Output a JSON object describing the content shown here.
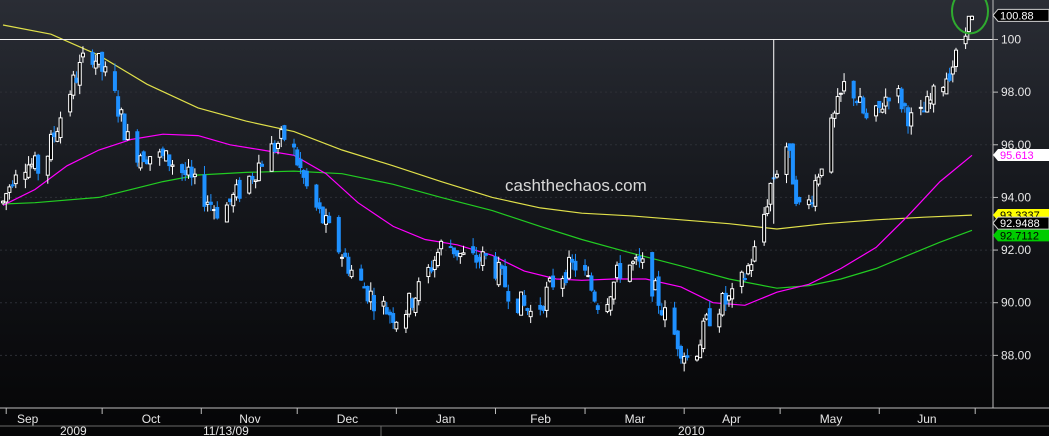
{
  "chart_data": {
    "type": "candlestick",
    "watermark": "cashthechaos.com",
    "ylim": [
      86.0,
      101.5
    ],
    "y_ticks": [
      {
        "value": 88.0,
        "label": "88.00"
      },
      {
        "value": 90.0,
        "label": "90.00"
      },
      {
        "value": 92.0,
        "label": "92.00"
      },
      {
        "value": 94.0,
        "label": "94.00"
      },
      {
        "value": 96.0,
        "label": "96.00"
      },
      {
        "value": 98.0,
        "label": "98.00"
      },
      {
        "value": 100.0,
        "label": "100"
      }
    ],
    "months": [
      "Sep",
      "Oct",
      "Nov",
      "Dec",
      "Jan",
      "Feb",
      "Mar",
      "Apr",
      "May",
      "Jun"
    ],
    "date_labels": [
      "2009",
      "11/13/09",
      "2010"
    ],
    "resistance_level": 100.0,
    "last_price": {
      "value": 100.88,
      "label": "100.88",
      "color": "#ffffff"
    },
    "ma_tags": [
      {
        "value": 95.613,
        "label": "95.613",
        "color": "#ff00ff"
      },
      {
        "value": 93.3337,
        "label": "93.3337",
        "color": "#ffff00"
      },
      {
        "value": 92.9488,
        "label": "92.9488",
        "color": "#ffffff"
      },
      {
        "value": 92.7112,
        "label": "92.7112",
        "color": "#00cc00"
      }
    ],
    "colors": {
      "up": "#ffffff",
      "down": "#1e90ff",
      "ma_short": "#ff00ff",
      "ma_mid": "#22cc22",
      "ma_long": "#e0e04a",
      "highlight": "#2faa2f"
    },
    "ma_short": [
      [
        "2009-08-31",
        93.7
      ],
      [
        "2009-09-10",
        94.3
      ],
      [
        "2009-09-20",
        95.2
      ],
      [
        "2009-09-30",
        95.8
      ],
      [
        "2009-10-10",
        96.2
      ],
      [
        "2009-10-20",
        96.4
      ],
      [
        "2009-10-31",
        96.35
      ],
      [
        "2009-11-10",
        96.0
      ],
      [
        "2009-11-20",
        95.8
      ],
      [
        "2009-11-30",
        95.6
      ],
      [
        "2009-12-10",
        94.9
      ],
      [
        "2009-12-20",
        93.8
      ],
      [
        "2009-12-31",
        92.9
      ],
      [
        "2010-01-10",
        92.4
      ],
      [
        "2010-01-20",
        92.2
      ],
      [
        "2010-01-31",
        91.8
      ],
      [
        "2010-02-10",
        91.2
      ],
      [
        "2010-02-20",
        90.9
      ],
      [
        "2010-02-28",
        90.85
      ],
      [
        "2010-03-10",
        90.9
      ],
      [
        "2010-03-20",
        90.9
      ],
      [
        "2010-03-31",
        90.6
      ],
      [
        "2010-04-10",
        90.0
      ],
      [
        "2010-04-20",
        89.9
      ],
      [
        "2010-04-30",
        90.4
      ],
      [
        "2010-05-10",
        90.7
      ],
      [
        "2010-05-20",
        91.3
      ],
      [
        "2010-05-31",
        92.1
      ],
      [
        "2010-06-10",
        93.3
      ],
      [
        "2010-06-20",
        94.6
      ],
      [
        "2010-06-30",
        95.6
      ]
    ],
    "ma_mid": [
      [
        "2009-08-31",
        93.75
      ],
      [
        "2009-09-10",
        93.8
      ],
      [
        "2009-09-30",
        94.0
      ],
      [
        "2009-10-20",
        94.6
      ],
      [
        "2009-10-31",
        94.85
      ],
      [
        "2009-11-15",
        94.95
      ],
      [
        "2009-11-30",
        95.0
      ],
      [
        "2009-12-15",
        94.9
      ],
      [
        "2009-12-31",
        94.5
      ],
      [
        "2010-01-15",
        94.0
      ],
      [
        "2010-01-31",
        93.5
      ],
      [
        "2010-02-15",
        92.9
      ],
      [
        "2010-02-28",
        92.4
      ],
      [
        "2010-03-15",
        91.9
      ],
      [
        "2010-03-31",
        91.4
      ],
      [
        "2010-04-15",
        90.9
      ],
      [
        "2010-04-30",
        90.55
      ],
      [
        "2010-05-10",
        90.65
      ],
      [
        "2010-05-20",
        90.9
      ],
      [
        "2010-05-31",
        91.3
      ],
      [
        "2010-06-10",
        91.8
      ],
      [
        "2010-06-20",
        92.3
      ],
      [
        "2010-06-30",
        92.75
      ]
    ],
    "ma_long": [
      [
        "2009-08-31",
        100.55
      ],
      [
        "2009-09-15",
        100.2
      ],
      [
        "2009-09-30",
        99.4
      ],
      [
        "2009-10-15",
        98.3
      ],
      [
        "2009-10-31",
        97.4
      ],
      [
        "2009-11-15",
        96.9
      ],
      [
        "2009-11-30",
        96.5
      ],
      [
        "2009-12-15",
        95.8
      ],
      [
        "2009-12-31",
        95.2
      ],
      [
        "2010-01-15",
        94.6
      ],
      [
        "2010-01-31",
        94.0
      ],
      [
        "2010-02-15",
        93.6
      ],
      [
        "2010-02-28",
        93.4
      ],
      [
        "2010-03-15",
        93.3
      ],
      [
        "2010-03-31",
        93.15
      ],
      [
        "2010-04-15",
        93.0
      ],
      [
        "2010-04-30",
        92.8
      ],
      [
        "2010-05-15",
        93.0
      ],
      [
        "2010-05-31",
        93.15
      ],
      [
        "2010-06-15",
        93.25
      ],
      [
        "2010-06-30",
        93.33
      ]
    ],
    "price_path": [
      [
        "2009-08-31",
        93.8
      ],
      [
        "2009-09-05",
        95.5
      ],
      [
        "2009-09-12",
        95.0
      ],
      [
        "2009-09-20",
        97.8
      ],
      [
        "2009-09-27",
        99.7
      ],
      [
        "2009-10-04",
        98.2
      ],
      [
        "2009-10-10",
        95.8
      ],
      [
        "2009-10-17",
        95.6
      ],
      [
        "2009-10-24",
        95.3
      ],
      [
        "2009-10-31",
        94.3
      ],
      [
        "2009-11-07",
        93.4
      ],
      [
        "2009-11-14",
        94.4
      ],
      [
        "2009-11-21",
        95.6
      ],
      [
        "2009-11-28",
        96.4
      ],
      [
        "2009-12-05",
        94.0
      ],
      [
        "2009-12-12",
        92.5
      ],
      [
        "2009-12-19",
        91.0
      ],
      [
        "2009-12-26",
        90.0
      ],
      [
        "2010-01-02",
        89.4
      ],
      [
        "2010-01-09",
        90.7
      ],
      [
        "2010-01-16",
        92.4
      ],
      [
        "2010-01-23",
        91.6
      ],
      [
        "2010-01-30",
        91.7
      ],
      [
        "2010-02-06",
        90.3
      ],
      [
        "2010-02-13",
        89.5
      ],
      [
        "2010-02-20",
        91.0
      ],
      [
        "2010-02-27",
        91.5
      ],
      [
        "2010-03-06",
        89.8
      ],
      [
        "2010-03-13",
        91.5
      ],
      [
        "2010-03-20",
        91.3
      ],
      [
        "2010-03-27",
        89.2
      ],
      [
        "2010-04-03",
        87.7
      ],
      [
        "2010-04-10",
        89.8
      ],
      [
        "2010-04-17",
        90.2
      ],
      [
        "2010-04-24",
        92.2
      ],
      [
        "2010-04-28",
        94.5
      ],
      [
        "2010-05-03",
        96.0
      ],
      [
        "2010-05-08",
        93.0
      ],
      [
        "2010-05-15",
        95.8
      ],
      [
        "2010-05-22",
        98.6
      ],
      [
        "2010-05-29",
        96.6
      ],
      [
        "2010-06-05",
        98.3
      ],
      [
        "2010-06-12",
        96.7
      ],
      [
        "2010-06-19",
        98.0
      ],
      [
        "2010-06-26",
        99.5
      ],
      [
        "2010-06-30",
        100.88
      ]
    ]
  }
}
